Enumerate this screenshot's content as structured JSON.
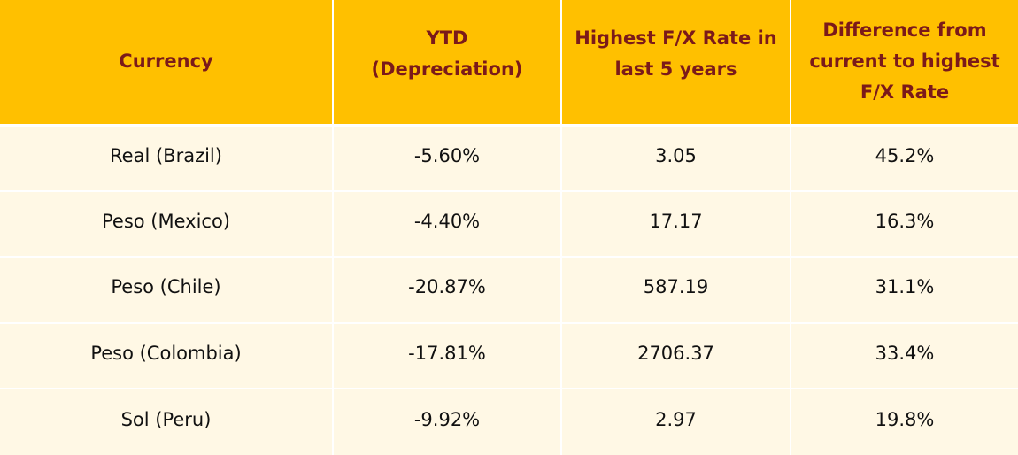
{
  "table": {
    "headers": [
      "Currency",
      "YTD\n(Depreciation)",
      "Highest F/X Rate in\nlast 5 years",
      "Difference from\ncurrent to highest\nF/X Rate"
    ],
    "rows": [
      [
        "Real (Brazil)",
        "-5.60%",
        "3.05",
        "45.2%"
      ],
      [
        "Peso (Mexico)",
        "-4.40%",
        "17.17",
        "16.3%"
      ],
      [
        "Peso (Chile)",
        "-20.87%",
        "587.19",
        "31.1%"
      ],
      [
        "Peso (Colombia)",
        "-17.81%",
        "2706.37",
        "33.4%"
      ],
      [
        "Sol (Peru)",
        "-9.92%",
        "2.97",
        "19.8%"
      ]
    ]
  },
  "colors": {
    "header_bg": "#FFC000",
    "header_text": "#7B1A1A",
    "row_bg": "#FFF8E5",
    "cell_text": "#111111"
  }
}
